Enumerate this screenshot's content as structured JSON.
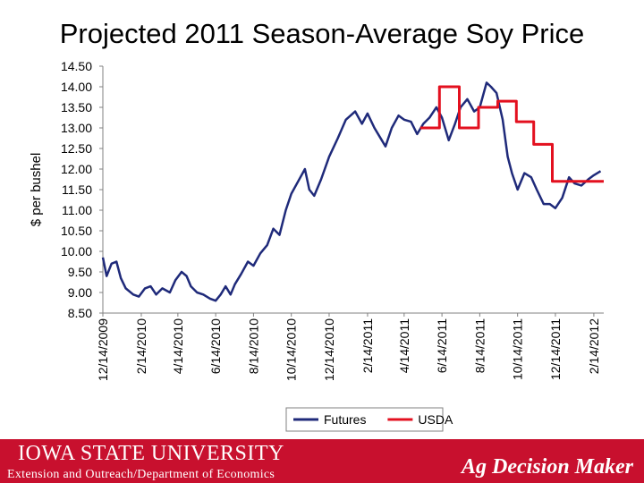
{
  "title": "Projected 2011 Season-Average Soy Price",
  "footer": {
    "university": "IOWA STATE UNIVERSITY",
    "department": "Extension and Outreach/Department of Economics",
    "brand": "Ag Decision Maker",
    "color": "#c8102e"
  },
  "chart_data": {
    "type": "line",
    "title": "Projected 2011 Season-Average Soy Price",
    "ylabel": "$ per bushel",
    "xlabel": "",
    "ylim": [
      8.5,
      14.5
    ],
    "xlim": [
      "2009-12-14",
      "2012-03-01"
    ],
    "yticks": [
      "8.50",
      "9.00",
      "9.50",
      "10.00",
      "10.50",
      "11.00",
      "11.50",
      "12.00",
      "12.50",
      "13.00",
      "13.50",
      "14.00",
      "14.50"
    ],
    "xticks": [
      "12/14/2009",
      "2/14/2010",
      "4/14/2010",
      "6/14/2010",
      "8/14/2010",
      "10/14/2010",
      "12/14/2010",
      "2/14/2011",
      "4/14/2011",
      "6/14/2011",
      "8/14/2011",
      "10/14/2011",
      "12/14/2011",
      "2/14/2012"
    ],
    "grid": false,
    "legend": "bottom",
    "series": [
      {
        "name": "Futures",
        "color": "#1f2a7a",
        "points": [
          [
            "2009-12-14",
            9.85
          ],
          [
            "2009-12-20",
            9.4
          ],
          [
            "2009-12-28",
            9.7
          ],
          [
            "2010-01-05",
            9.75
          ],
          [
            "2010-01-12",
            9.35
          ],
          [
            "2010-01-20",
            9.1
          ],
          [
            "2010-02-01",
            8.95
          ],
          [
            "2010-02-10",
            8.9
          ],
          [
            "2010-02-20",
            9.1
          ],
          [
            "2010-03-01",
            9.15
          ],
          [
            "2010-03-10",
            8.95
          ],
          [
            "2010-03-20",
            9.1
          ],
          [
            "2010-04-01",
            9.0
          ],
          [
            "2010-04-10",
            9.3
          ],
          [
            "2010-04-20",
            9.5
          ],
          [
            "2010-04-28",
            9.4
          ],
          [
            "2010-05-05",
            9.15
          ],
          [
            "2010-05-15",
            9.0
          ],
          [
            "2010-05-25",
            8.95
          ],
          [
            "2010-06-05",
            8.85
          ],
          [
            "2010-06-14",
            8.8
          ],
          [
            "2010-06-22",
            8.95
          ],
          [
            "2010-06-30",
            9.15
          ],
          [
            "2010-07-08",
            8.95
          ],
          [
            "2010-07-15",
            9.2
          ],
          [
            "2010-07-25",
            9.45
          ],
          [
            "2010-08-05",
            9.75
          ],
          [
            "2010-08-14",
            9.65
          ],
          [
            "2010-08-25",
            9.95
          ],
          [
            "2010-09-05",
            10.15
          ],
          [
            "2010-09-15",
            10.55
          ],
          [
            "2010-09-25",
            10.4
          ],
          [
            "2010-10-05",
            11.0
          ],
          [
            "2010-10-14",
            11.4
          ],
          [
            "2010-10-25",
            11.7
          ],
          [
            "2010-11-05",
            12.0
          ],
          [
            "2010-11-12",
            11.5
          ],
          [
            "2010-11-20",
            11.35
          ],
          [
            "2010-12-01",
            11.75
          ],
          [
            "2010-12-14",
            12.3
          ],
          [
            "2010-12-28",
            12.75
          ],
          [
            "2011-01-10",
            13.2
          ],
          [
            "2011-01-25",
            13.4
          ],
          [
            "2011-02-05",
            13.1
          ],
          [
            "2011-02-14",
            13.35
          ],
          [
            "2011-02-25",
            13.0
          ],
          [
            "2011-03-05",
            12.8
          ],
          [
            "2011-03-15",
            12.55
          ],
          [
            "2011-03-25",
            13.0
          ],
          [
            "2011-04-05",
            13.3
          ],
          [
            "2011-04-14",
            13.2
          ],
          [
            "2011-04-25",
            13.15
          ],
          [
            "2011-05-05",
            12.85
          ],
          [
            "2011-05-15",
            13.1
          ],
          [
            "2011-05-25",
            13.25
          ],
          [
            "2011-06-05",
            13.5
          ],
          [
            "2011-06-14",
            13.25
          ],
          [
            "2011-06-25",
            12.7
          ],
          [
            "2011-07-05",
            13.1
          ],
          [
            "2011-07-14",
            13.5
          ],
          [
            "2011-07-25",
            13.7
          ],
          [
            "2011-08-05",
            13.4
          ],
          [
            "2011-08-14",
            13.5
          ],
          [
            "2011-08-25",
            14.1
          ],
          [
            "2011-09-01",
            14.0
          ],
          [
            "2011-09-10",
            13.85
          ],
          [
            "2011-09-20",
            13.2
          ],
          [
            "2011-09-28",
            12.3
          ],
          [
            "2011-10-05",
            11.9
          ],
          [
            "2011-10-14",
            11.5
          ],
          [
            "2011-10-25",
            11.9
          ],
          [
            "2011-11-05",
            11.8
          ],
          [
            "2011-11-14",
            11.5
          ],
          [
            "2011-11-25",
            11.15
          ],
          [
            "2011-12-05",
            11.15
          ],
          [
            "2011-12-14",
            11.05
          ],
          [
            "2011-12-25",
            11.3
          ],
          [
            "2012-01-05",
            11.8
          ],
          [
            "2012-01-14",
            11.65
          ],
          [
            "2012-01-25",
            11.6
          ],
          [
            "2012-02-05",
            11.75
          ],
          [
            "2012-02-14",
            11.85
          ],
          [
            "2012-02-25",
            11.95
          ]
        ]
      },
      {
        "name": "USDA",
        "color": "#e3101f",
        "points": [
          [
            "2011-05-10",
            13.0
          ],
          [
            "2011-06-10",
            13.0
          ],
          [
            "2011-06-10",
            14.0
          ],
          [
            "2011-07-12",
            14.0
          ],
          [
            "2011-07-12",
            13.0
          ],
          [
            "2011-08-12",
            13.0
          ],
          [
            "2011-08-12",
            13.5
          ],
          [
            "2011-09-12",
            13.5
          ],
          [
            "2011-09-12",
            13.65
          ],
          [
            "2011-10-12",
            13.65
          ],
          [
            "2011-10-12",
            13.15
          ],
          [
            "2011-11-09",
            13.15
          ],
          [
            "2011-11-09",
            12.6
          ],
          [
            "2011-12-09",
            12.6
          ],
          [
            "2011-12-09",
            11.7
          ],
          [
            "2012-03-01",
            11.7
          ]
        ]
      }
    ]
  }
}
